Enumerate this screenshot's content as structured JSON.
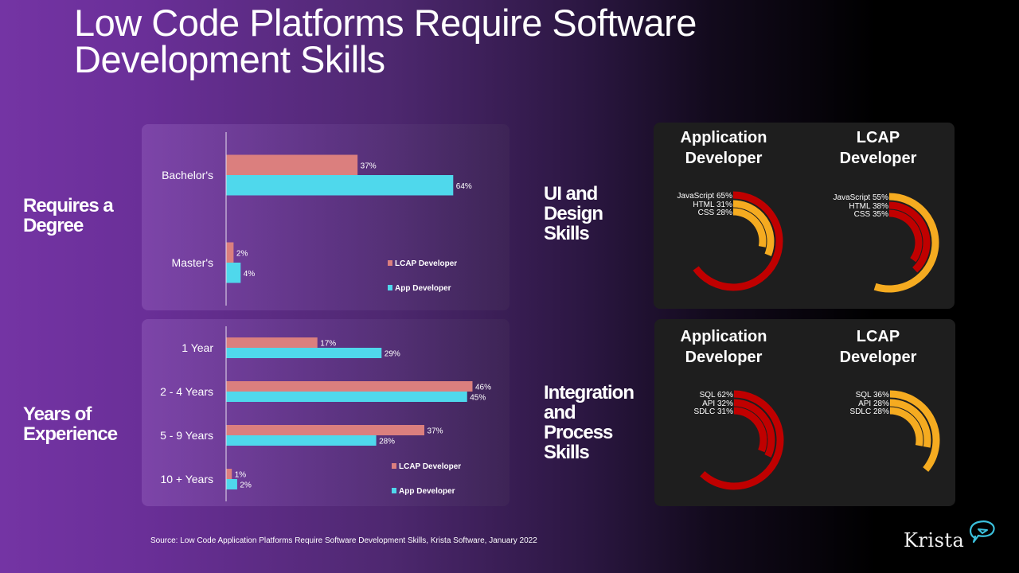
{
  "title": "Low Code Platforms Require Software Development Skills",
  "title_lines": [
    "Low Code Platforms Require Software",
    "Development Skills"
  ],
  "section_labels": {
    "degree": [
      "Requires a",
      "Degree"
    ],
    "experience": [
      "Years of",
      "Experience"
    ],
    "ui": [
      "UI and",
      "Design",
      "Skills"
    ],
    "integration": [
      "Integration",
      "and",
      "Process",
      "Skills"
    ]
  },
  "column_titles": {
    "app": [
      "Application",
      "Developer"
    ],
    "lcap": [
      "LCAP",
      "Developer"
    ]
  },
  "colors": {
    "lcap_bar": "#db7f7e",
    "app_bar": "#4fd8ec",
    "red_arc": "#c00000",
    "orange_arc": "#f5ab20",
    "panel_dark": "#1e1e1e",
    "logo_accent": "#3bc0dc"
  },
  "chart_data": [
    {
      "type": "bar",
      "orientation": "horizontal",
      "title": "Requires a Degree",
      "categories": [
        "Bachelor's",
        "Master's"
      ],
      "series": [
        {
          "name": "LCAP Developer",
          "values": [
            37,
            2
          ],
          "color": "#db7f7e"
        },
        {
          "name": "App Developer",
          "values": [
            64,
            4
          ],
          "color": "#4fd8ec"
        }
      ],
      "value_suffix": "%",
      "xlim": [
        0,
        80
      ],
      "legend": "bottom-right",
      "grid": false
    },
    {
      "type": "bar",
      "orientation": "horizontal",
      "title": "Years of Experience",
      "categories": [
        "1 Year",
        "2 - 4 Years",
        "5 - 9 Years",
        "10 + Years"
      ],
      "series": [
        {
          "name": "LCAP Developer",
          "values": [
            17,
            46,
            37,
            1
          ],
          "color": "#db7f7e"
        },
        {
          "name": "App Developer",
          "values": [
            29,
            45,
            28,
            2
          ],
          "color": "#4fd8ec"
        }
      ],
      "value_suffix": "%",
      "xlim": [
        0,
        53
      ],
      "legend": "bottom-right",
      "grid": false
    },
    {
      "type": "radial-bar",
      "title": "UI and Design Skills - Application Developer",
      "full_scale": 100,
      "items": [
        {
          "label": "JavaScript",
          "value": 65,
          "color": "#c00000"
        },
        {
          "label": "HTML",
          "value": 31,
          "color": "#f5ab20"
        },
        {
          "label": "CSS",
          "value": 28,
          "color": "#f5ab20"
        }
      ]
    },
    {
      "type": "radial-bar",
      "title": "UI and Design Skills - LCAP Developer",
      "full_scale": 100,
      "items": [
        {
          "label": "JavaScript",
          "value": 55,
          "color": "#f5ab20"
        },
        {
          "label": "HTML",
          "value": 38,
          "color": "#c00000"
        },
        {
          "label": "CSS",
          "value": 35,
          "color": "#c00000"
        }
      ]
    },
    {
      "type": "radial-bar",
      "title": "Integration and Process Skills - Application Developer",
      "full_scale": 100,
      "items": [
        {
          "label": "SQL",
          "value": 62,
          "color": "#c00000"
        },
        {
          "label": "API",
          "value": 32,
          "color": "#c00000"
        },
        {
          "label": "SDLC",
          "value": 31,
          "color": "#c00000"
        }
      ]
    },
    {
      "type": "radial-bar",
      "title": "Integration and Process Skills - LCAP Developer",
      "full_scale": 100,
      "items": [
        {
          "label": "SQL",
          "value": 36,
          "color": "#f5ab20"
        },
        {
          "label": "API",
          "value": 28,
          "color": "#f5ab20"
        },
        {
          "label": "SDLC",
          "value": 28,
          "color": "#f5ab20"
        }
      ]
    }
  ],
  "source": "Source: Low Code Application Platforms Require Software Development Skills, Krista Software, January 2022",
  "logo": {
    "text": "Krista",
    "icon": "speech-bubble-logo-icon"
  }
}
